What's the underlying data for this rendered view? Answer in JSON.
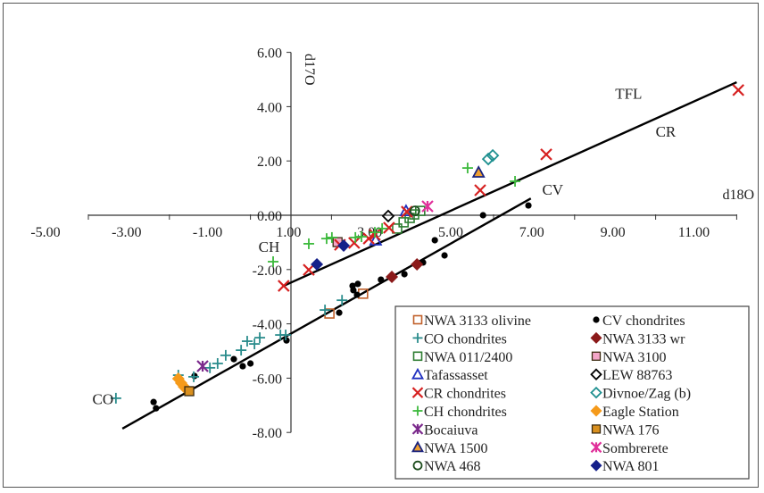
{
  "chart_data": {
    "type": "scatter",
    "title": "",
    "xlabel": "d18O",
    "ylabel": "d17O",
    "xlim": [
      -5,
      11
    ],
    "ylim": [
      -8,
      6
    ],
    "x_ticks": [
      -5,
      -3,
      -1,
      1,
      3,
      5,
      7,
      9,
      11
    ],
    "x_tick_labels": [
      "-5.00",
      "-3.00",
      "-1.00",
      "1.00",
      "3.00",
      "5.00",
      "7.00",
      "9.00",
      "11.00"
    ],
    "y_ticks": [
      6,
      4,
      2,
      0,
      -2,
      -4,
      -6,
      -8
    ],
    "y_tick_labels": [
      "6.00",
      "4.00",
      "2.00",
      "0.00",
      "-2.00",
      "-4.00",
      "-6.00",
      "-8.00"
    ],
    "grid": false,
    "legend_position": "bottom-right",
    "annotations": [
      {
        "text": "TFL",
        "x": 8.0,
        "y": 4.3
      },
      {
        "text": "CR",
        "x": 9.0,
        "y": 2.9
      },
      {
        "text": "CV",
        "x": 6.2,
        "y": 0.75
      },
      {
        "text": "CH",
        "x": -0.8,
        "y": -1.35
      },
      {
        "text": "CO",
        "x": -4.9,
        "y": -6.95
      }
    ],
    "lines": [
      {
        "name": "TFL/CR line",
        "points": [
          [
            -0.18,
            -2.6
          ],
          [
            11.0,
            4.9
          ]
        ]
      },
      {
        "name": "CV line",
        "points": [
          [
            -4.16,
            -7.86
          ],
          [
            5.92,
            0.62
          ]
        ]
      }
    ],
    "series": [
      {
        "name": "NWA 3133 olivine",
        "marker": "square-open",
        "color": "#c0602a",
        "points": [
          [
            0.95,
            -3.62
          ],
          [
            1.78,
            -2.89
          ]
        ]
      },
      {
        "name": "CV chondrites",
        "marker": "dot",
        "color": "#000000",
        "points": [
          [
            4.74,
            0.0
          ],
          [
            5.86,
            0.36
          ],
          [
            3.55,
            -0.92
          ],
          [
            3.79,
            -1.48
          ],
          [
            3.26,
            -1.74
          ],
          [
            2.8,
            -2.17
          ],
          [
            2.22,
            -2.37
          ],
          [
            1.65,
            -2.53
          ],
          [
            1.52,
            -2.6
          ],
          [
            1.54,
            -2.76
          ],
          [
            1.63,
            -2.93
          ],
          [
            1.19,
            -3.59
          ],
          [
            -0.11,
            -4.61
          ],
          [
            -1.41,
            -5.3
          ],
          [
            -1.19,
            -5.56
          ],
          [
            -1.0,
            -5.46
          ],
          [
            -2.38,
            -5.92
          ],
          [
            -3.39,
            -6.88
          ],
          [
            -3.33,
            -7.11
          ]
        ]
      },
      {
        "name": "CO chondrites",
        "marker": "plus",
        "color": "#2a8c8c",
        "points": [
          [
            -4.32,
            -6.74
          ],
          [
            -2.78,
            -5.89
          ],
          [
            -2.4,
            -5.95
          ],
          [
            -2.0,
            -5.62
          ],
          [
            -1.81,
            -5.46
          ],
          [
            -1.61,
            -5.16
          ],
          [
            -1.23,
            -4.97
          ],
          [
            -1.08,
            -4.64
          ],
          [
            -0.9,
            -4.74
          ],
          [
            -0.77,
            -4.51
          ],
          [
            -0.26,
            -4.41
          ],
          [
            -0.13,
            -4.41
          ],
          [
            0.84,
            -3.49
          ],
          [
            1.26,
            -3.13
          ]
        ]
      },
      {
        "name": "NWA 3133 wr",
        "marker": "diamond-filled",
        "color": "#8b1a1a",
        "points": [
          [
            2.49,
            -2.27
          ],
          [
            3.11,
            -1.81
          ]
        ]
      },
      {
        "name": "NWA 011/2400",
        "marker": "square-open",
        "color": "#2e7d32",
        "points": [
          [
            3.19,
            0.16
          ],
          [
            3.04,
            0.03
          ],
          [
            2.93,
            -0.1
          ],
          [
            2.78,
            -0.26
          ],
          [
            2.62,
            -0.49
          ]
        ]
      },
      {
        "name": "NWA 3100",
        "marker": "square-filled",
        "color": "#f4a6c8",
        "points": [
          [
            1.15,
            -0.99
          ]
        ]
      },
      {
        "name": "Tafassasset",
        "marker": "triangle-open",
        "color": "#1f2fbf",
        "points": [
          [
            2.84,
            0.16
          ],
          [
            2.09,
            -0.92
          ]
        ]
      },
      {
        "name": "LEW 88763",
        "marker": "diamond-open",
        "color": "#000000",
        "points": [
          [
            2.4,
            -0.03
          ]
        ]
      },
      {
        "name": "CR chondrites",
        "marker": "x",
        "color": "#d62020",
        "points": [
          [
            11.04,
            4.61
          ],
          [
            6.3,
            2.24
          ],
          [
            4.67,
            0.92
          ],
          [
            2.86,
            0.13
          ],
          [
            2.42,
            -0.46
          ],
          [
            2.07,
            -0.72
          ],
          [
            1.92,
            -0.86
          ],
          [
            1.56,
            -1.02
          ],
          [
            1.21,
            -1.09
          ],
          [
            0.44,
            -2.01
          ],
          [
            -0.18,
            -2.6
          ]
        ]
      },
      {
        "name": "Divnoe/Zag (b)",
        "marker": "diamond-open",
        "color": "#1f9090",
        "points": [
          [
            4.87,
            2.07
          ],
          [
            4.98,
            2.2
          ]
        ]
      },
      {
        "name": "CH chondrites",
        "marker": "plus",
        "color": "#3cb93c",
        "points": [
          [
            4.36,
            1.74
          ],
          [
            5.53,
            1.25
          ],
          [
            2.25,
            -0.49
          ],
          [
            2.07,
            -0.63
          ],
          [
            1.74,
            -0.79
          ],
          [
            1.59,
            -0.82
          ],
          [
            1.01,
            -0.82
          ],
          [
            0.88,
            -0.86
          ],
          [
            0.44,
            -1.05
          ],
          [
            -0.44,
            -1.71
          ]
        ]
      },
      {
        "name": "Eagle Station",
        "marker": "diamond-filled",
        "color": "#f59a1a",
        "points": [
          [
            -2.78,
            -6.02
          ],
          [
            -2.71,
            -6.18
          ],
          [
            -2.64,
            -6.32
          ],
          [
            -2.58,
            -6.41
          ]
        ]
      },
      {
        "name": "Bocaiuva",
        "marker": "asterisk",
        "color": "#7b2a8c",
        "points": [
          [
            -2.18,
            -5.56
          ]
        ]
      },
      {
        "name": "NWA 176",
        "marker": "square-filled",
        "color": "#d9901f",
        "points": [
          [
            -2.51,
            -6.48
          ]
        ]
      },
      {
        "name": "NWA 1500",
        "marker": "triangle-filled",
        "color": "#f0a030",
        "points": [
          [
            4.63,
            1.58
          ]
        ]
      },
      {
        "name": "Sombrerete",
        "marker": "asterisk",
        "color": "#e0309a",
        "points": [
          [
            3.37,
            0.33
          ]
        ]
      },
      {
        "name": "NWA 468",
        "marker": "circle-open",
        "color": "#1e4d1e",
        "points": [
          [
            3.06,
            0.16
          ]
        ]
      },
      {
        "name": "NWA 801",
        "marker": "diamond-filled",
        "color": "#15208a",
        "points": [
          [
            1.3,
            -1.12
          ],
          [
            0.64,
            -1.81
          ]
        ]
      }
    ]
  }
}
